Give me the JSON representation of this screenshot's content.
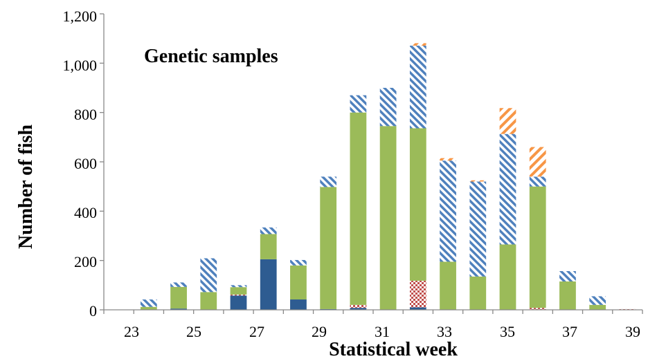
{
  "chart_data": {
    "type": "bar",
    "stacked": true,
    "annotation": "Genetic samples",
    "xlabel": "Statistical week",
    "ylabel": "Number of fish",
    "ylim": [
      0,
      1200
    ],
    "yticks": [
      "0",
      "200",
      "400",
      "600",
      "800",
      "1,000",
      "1,200"
    ],
    "ytick_values": [
      0,
      200,
      400,
      600,
      800,
      1000,
      1200
    ],
    "categories": [
      23,
      24,
      25,
      26,
      27,
      28,
      29,
      30,
      31,
      32,
      33,
      34,
      35,
      36,
      37,
      38,
      39,
      40
    ],
    "xtick_labels": [
      "23",
      "25",
      "27",
      "29",
      "31",
      "33",
      "35",
      "37",
      "39"
    ],
    "grid": false,
    "legend": "none",
    "series": [
      {
        "key": "s1",
        "color": "#2E5C91",
        "pattern": "solid",
        "values": [
          0,
          0,
          5,
          0,
          58,
          205,
          42,
          3,
          8,
          0,
          10,
          0,
          0,
          0,
          0,
          0,
          0,
          0
        ]
      },
      {
        "key": "s2",
        "color": "#C0504D",
        "pattern": "checker",
        "values": [
          0,
          0,
          0,
          0,
          4,
          0,
          0,
          0,
          12,
          0,
          108,
          0,
          0,
          0,
          8,
          0,
          0,
          3
        ]
      },
      {
        "key": "s3",
        "color": "#9BBB59",
        "pattern": "solid",
        "values": [
          0,
          12,
          88,
          72,
          30,
          102,
          138,
          495,
          780,
          745,
          618,
          195,
          135,
          265,
          492,
          115,
          20,
          0
        ]
      },
      {
        "key": "s4",
        "color": "#4F81BD",
        "pattern": "diagonal",
        "values": [
          0,
          30,
          18,
          137,
          8,
          27,
          22,
          42,
          70,
          155,
          335,
          410,
          385,
          448,
          40,
          42,
          35,
          0
        ]
      },
      {
        "key": "s5",
        "color": "#F79646",
        "pattern": "diagonal-reverse",
        "values": [
          0,
          0,
          0,
          0,
          0,
          0,
          0,
          0,
          0,
          0,
          10,
          10,
          5,
          105,
          120,
          0,
          0,
          0
        ]
      }
    ]
  }
}
